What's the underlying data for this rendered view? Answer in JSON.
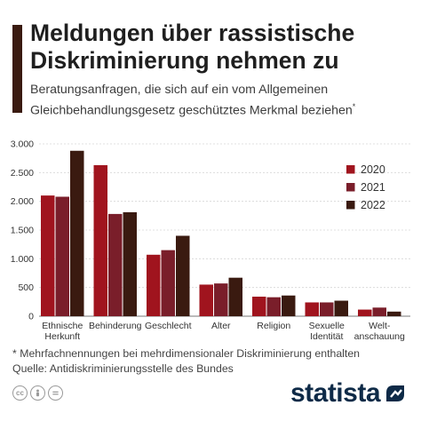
{
  "header": {
    "title": "Meldungen über rassistische Diskriminierung nehmen zu",
    "subtitle": "Beratungsanfragen, die sich auf ein vom Allgemeinen Gleichbehandlungsgesetz geschütztes Merkmal beziehen",
    "subtitle_marker": "*"
  },
  "chart_data": {
    "type": "bar",
    "categories": [
      "Ethnische Herkunft",
      "Behinderung",
      "Geschlecht",
      "Alter",
      "Religion",
      "Sexuelle Identität",
      "Welt-anschauung"
    ],
    "category_lines": [
      [
        "Ethnische",
        "Herkunft"
      ],
      [
        "Behinderung"
      ],
      [
        "Geschlecht"
      ],
      [
        "Alter"
      ],
      [
        "Religion"
      ],
      [
        "Sexuelle",
        "Identität"
      ],
      [
        "Welt-",
        "anschauung"
      ]
    ],
    "series": [
      {
        "name": "2020",
        "color": "#a0141e",
        "values": [
          2101,
          2630,
          1070,
          550,
          340,
          240,
          115
        ]
      },
      {
        "name": "2021",
        "color": "#7a1e2a",
        "values": [
          2080,
          1780,
          1150,
          570,
          330,
          240,
          150
        ]
      },
      {
        "name": "2022",
        "color": "#3a1a10",
        "values": [
          2880,
          1810,
          1400,
          670,
          360,
          270,
          80
        ]
      }
    ],
    "ylim": [
      0,
      3000
    ],
    "yticks": [
      0,
      500,
      1000,
      1500,
      2000,
      2500,
      3000
    ],
    "ytick_labels": [
      "0",
      "500",
      "1.000",
      "1.500",
      "2.000",
      "2.500",
      "3.000"
    ],
    "grid": true,
    "legend_position": "top-right",
    "xlabel": "",
    "ylabel": ""
  },
  "footer": {
    "footnote": "* Mehrfachnennungen bei mehrdimensionaler Diskriminierung enthalten",
    "source": "Quelle: Antidiskriminierungsstelle des Bundes",
    "brand": "statista",
    "license_icons": [
      "cc-icon",
      "person-icon",
      "equals-icon"
    ]
  }
}
